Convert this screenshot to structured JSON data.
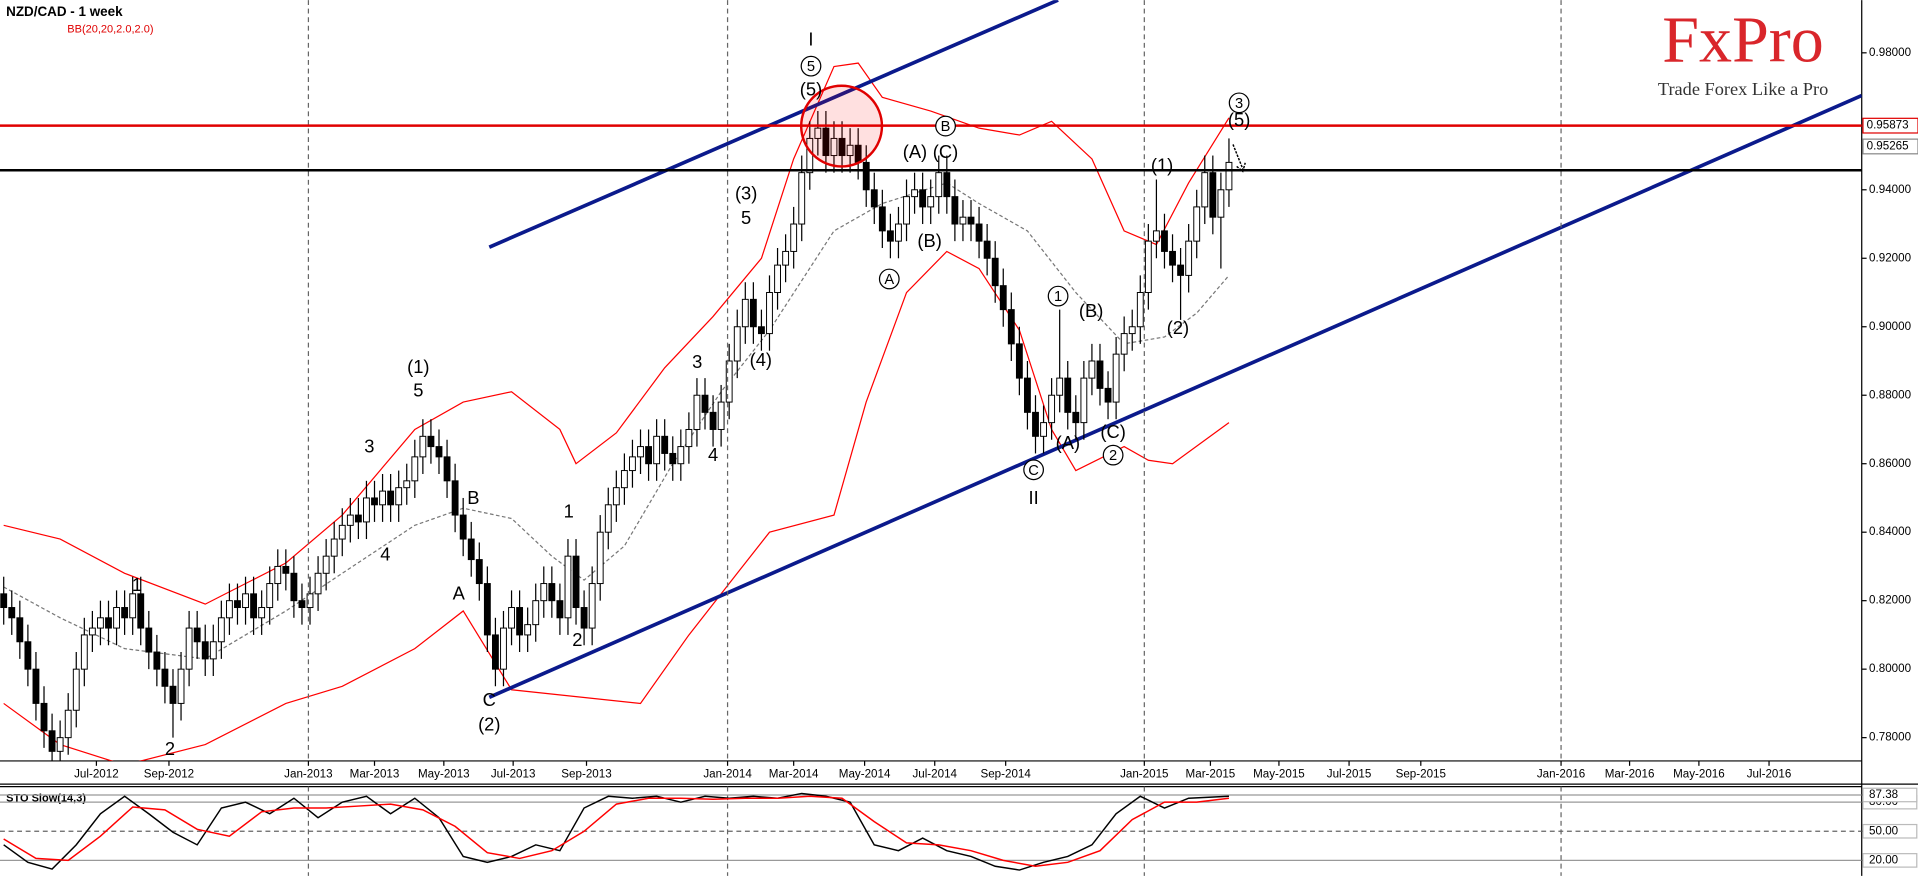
{
  "chart_data": {
    "type": "candlestick",
    "title": "NZD/CAD - 1 week",
    "indicator": "BB(20,20,2.0,2.0)",
    "logo": "FxPro",
    "tagline": "Trade Forex Like a Pro",
    "xlim": [
      -0.46,
      230.5
    ],
    "xticks": [
      {
        "value": 11.5,
        "label": "Jul-2012"
      },
      {
        "value": 20.5,
        "label": "Sep-2012"
      },
      {
        "value": 37.8,
        "label": "Jan-2013"
      },
      {
        "value": 46,
        "label": "Mar-2013"
      },
      {
        "value": 54.6,
        "label": "May-2013"
      },
      {
        "value": 63.2,
        "label": "Jul-2013"
      },
      {
        "value": 72.3,
        "label": "Sep-2013"
      },
      {
        "value": 89.8,
        "label": "Jan-2014"
      },
      {
        "value": 98,
        "label": "Mar-2014"
      },
      {
        "value": 106.8,
        "label": "May-2014"
      },
      {
        "value": 115.5,
        "label": "Jul-2014"
      },
      {
        "value": 124.3,
        "label": "Sep-2014"
      },
      {
        "value": 141.5,
        "label": "Jan-2015"
      },
      {
        "value": 149.7,
        "label": "Mar-2015"
      },
      {
        "value": 158.2,
        "label": "May-2015"
      },
      {
        "value": 166.9,
        "label": "Jul-2015"
      },
      {
        "value": 175.8,
        "label": "Sep-2015"
      },
      {
        "value": 193.2,
        "label": "Jan-2016"
      },
      {
        "value": 201.7,
        "label": "Mar-2016"
      },
      {
        "value": 210.3,
        "label": "May-2016"
      },
      {
        "value": 219,
        "label": "Jul-2016"
      }
    ],
    "ylim": [
      0.7732,
      0.9954
    ],
    "yticks": [
      {
        "value": 0.78,
        "label": "0.78000"
      },
      {
        "value": 0.8,
        "label": "0.80000"
      },
      {
        "value": 0.82,
        "label": "0.82000"
      },
      {
        "value": 0.84,
        "label": "0.84000"
      },
      {
        "value": 0.86,
        "label": "0.86000"
      },
      {
        "value": 0.88,
        "label": "0.88000"
      },
      {
        "value": 0.9,
        "label": "0.90000"
      },
      {
        "value": 0.92,
        "label": "0.92000"
      },
      {
        "value": 0.94,
        "label": "0.94000"
      },
      {
        "value": 0.98,
        "label": "0.98000"
      }
    ],
    "up_color": "#ffffff",
    "down_color": "#000000",
    "open": [
      0.822,
      0.818,
      0.815,
      0.808,
      0.8,
      0.79,
      0.782,
      0.776,
      0.78,
      0.788,
      0.8,
      0.81,
      0.812,
      0.815,
      0.812,
      0.818,
      0.815,
      0.822,
      0.812,
      0.805,
      0.8,
      0.795,
      0.79,
      0.8,
      0.812,
      0.808,
      0.803,
      0.808,
      0.815,
      0.82,
      0.818,
      0.822,
      0.815,
      0.818,
      0.825,
      0.83,
      0.828,
      0.82,
      0.818,
      0.822,
      0.828,
      0.833,
      0.838,
      0.842,
      0.845,
      0.843,
      0.85,
      0.848,
      0.852,
      0.848,
      0.853,
      0.855,
      0.862,
      0.868,
      0.865,
      0.862,
      0.855,
      0.845,
      0.838,
      0.832,
      0.825,
      0.81,
      0.8,
      0.812,
      0.818,
      0.81,
      0.813,
      0.82,
      0.825,
      0.82,
      0.815,
      0.833,
      0.818,
      0.812,
      0.825,
      0.84,
      0.848,
      0.853,
      0.858,
      0.862,
      0.865,
      0.86,
      0.868,
      0.863,
      0.86,
      0.865,
      0.87,
      0.88,
      0.875,
      0.87,
      0.878,
      0.89,
      0.9,
      0.908,
      0.9,
      0.898,
      0.91,
      0.918,
      0.922,
      0.93,
      0.945,
      0.955,
      0.958,
      0.95,
      0.955,
      0.95,
      0.953,
      0.948,
      0.94,
      0.935,
      0.928,
      0.925,
      0.93,
      0.938,
      0.94,
      0.935,
      0.938,
      0.945,
      0.938,
      0.93,
      0.932,
      0.93,
      0.925,
      0.92,
      0.912,
      0.905,
      0.895,
      0.885,
      0.875,
      0.868,
      0.872,
      0.88,
      0.885,
      0.875,
      0.872,
      0.885,
      0.89,
      0.882,
      0.878,
      0.892,
      0.898,
      0.9,
      0.91,
      0.925,
      0.928,
      0.922,
      0.918,
      0.915,
      0.925,
      0.935,
      0.945,
      0.932,
      0.94
    ],
    "high": [
      0.827,
      0.823,
      0.82,
      0.813,
      0.805,
      0.795,
      0.787,
      0.785,
      0.793,
      0.805,
      0.815,
      0.817,
      0.82,
      0.82,
      0.823,
      0.823,
      0.827,
      0.827,
      0.817,
      0.81,
      0.805,
      0.8,
      0.805,
      0.817,
      0.817,
      0.813,
      0.813,
      0.82,
      0.825,
      0.825,
      0.827,
      0.827,
      0.823,
      0.83,
      0.835,
      0.835,
      0.833,
      0.825,
      0.827,
      0.833,
      0.838,
      0.843,
      0.847,
      0.85,
      0.85,
      0.855,
      0.855,
      0.857,
      0.857,
      0.858,
      0.86,
      0.867,
      0.873,
      0.873,
      0.87,
      0.867,
      0.86,
      0.85,
      0.843,
      0.837,
      0.83,
      0.815,
      0.817,
      0.823,
      0.823,
      0.818,
      0.825,
      0.83,
      0.83,
      0.825,
      0.838,
      0.838,
      0.823,
      0.83,
      0.845,
      0.853,
      0.858,
      0.863,
      0.867,
      0.87,
      0.87,
      0.873,
      0.873,
      0.868,
      0.87,
      0.875,
      0.885,
      0.885,
      0.88,
      0.883,
      0.895,
      0.905,
      0.913,
      0.913,
      0.905,
      0.915,
      0.923,
      0.927,
      0.935,
      0.95,
      0.96,
      0.963,
      0.963,
      0.96,
      0.96,
      0.958,
      0.958,
      0.953,
      0.945,
      0.94,
      0.933,
      0.935,
      0.943,
      0.945,
      0.945,
      0.943,
      0.95,
      0.95,
      0.943,
      0.937,
      0.937,
      0.935,
      0.93,
      0.925,
      0.917,
      0.91,
      0.9,
      0.89,
      0.88,
      0.877,
      0.885,
      0.905,
      0.89,
      0.88,
      0.89,
      0.895,
      0.895,
      0.887,
      0.897,
      0.903,
      0.905,
      0.915,
      0.93,
      0.943,
      0.933,
      0.927,
      0.923,
      0.93,
      0.94,
      0.95,
      0.95,
      0.945,
      0.955
    ],
    "low": [
      0.813,
      0.81,
      0.803,
      0.795,
      0.785,
      0.777,
      0.771,
      0.771,
      0.775,
      0.783,
      0.795,
      0.805,
      0.807,
      0.807,
      0.807,
      0.81,
      0.81,
      0.807,
      0.8,
      0.795,
      0.79,
      0.78,
      0.785,
      0.795,
      0.803,
      0.798,
      0.798,
      0.803,
      0.81,
      0.813,
      0.813,
      0.81,
      0.81,
      0.813,
      0.82,
      0.823,
      0.815,
      0.813,
      0.813,
      0.817,
      0.823,
      0.828,
      0.833,
      0.837,
      0.838,
      0.838,
      0.843,
      0.843,
      0.843,
      0.843,
      0.848,
      0.85,
      0.857,
      0.86,
      0.857,
      0.85,
      0.84,
      0.833,
      0.827,
      0.82,
      0.805,
      0.795,
      0.795,
      0.807,
      0.805,
      0.805,
      0.808,
      0.815,
      0.815,
      0.81,
      0.81,
      0.813,
      0.807,
      0.807,
      0.82,
      0.835,
      0.843,
      0.848,
      0.853,
      0.857,
      0.855,
      0.855,
      0.858,
      0.855,
      0.855,
      0.86,
      0.865,
      0.87,
      0.865,
      0.865,
      0.873,
      0.885,
      0.895,
      0.895,
      0.893,
      0.893,
      0.905,
      0.913,
      0.917,
      0.925,
      0.94,
      0.95,
      0.945,
      0.945,
      0.945,
      0.945,
      0.943,
      0.935,
      0.93,
      0.923,
      0.92,
      0.92,
      0.925,
      0.933,
      0.93,
      0.93,
      0.933,
      0.933,
      0.925,
      0.925,
      0.925,
      0.92,
      0.915,
      0.907,
      0.9,
      0.89,
      0.88,
      0.87,
      0.863,
      0.863,
      0.867,
      0.875,
      0.87,
      0.867,
      0.867,
      0.88,
      0.877,
      0.873,
      0.873,
      0.887,
      0.893,
      0.895,
      0.905,
      0.92,
      0.917,
      0.913,
      0.902,
      0.91,
      0.92,
      0.93,
      0.927,
      0.917,
      0.935
    ],
    "close": [
      0.818,
      0.815,
      0.808,
      0.8,
      0.79,
      0.782,
      0.776,
      0.78,
      0.788,
      0.8,
      0.81,
      0.812,
      0.815,
      0.812,
      0.818,
      0.815,
      0.822,
      0.812,
      0.805,
      0.8,
      0.795,
      0.79,
      0.8,
      0.812,
      0.808,
      0.803,
      0.808,
      0.815,
      0.82,
      0.818,
      0.822,
      0.815,
      0.818,
      0.825,
      0.83,
      0.828,
      0.82,
      0.818,
      0.822,
      0.828,
      0.833,
      0.838,
      0.842,
      0.845,
      0.843,
      0.85,
      0.848,
      0.852,
      0.848,
      0.853,
      0.855,
      0.862,
      0.868,
      0.865,
      0.862,
      0.855,
      0.845,
      0.838,
      0.832,
      0.825,
      0.81,
      0.8,
      0.812,
      0.818,
      0.81,
      0.813,
      0.82,
      0.825,
      0.82,
      0.815,
      0.833,
      0.818,
      0.812,
      0.825,
      0.84,
      0.848,
      0.853,
      0.858,
      0.862,
      0.865,
      0.86,
      0.868,
      0.863,
      0.86,
      0.865,
      0.87,
      0.88,
      0.875,
      0.87,
      0.878,
      0.89,
      0.9,
      0.908,
      0.9,
      0.898,
      0.91,
      0.918,
      0.922,
      0.93,
      0.945,
      0.955,
      0.958,
      0.95,
      0.955,
      0.95,
      0.953,
      0.948,
      0.94,
      0.935,
      0.928,
      0.925,
      0.93,
      0.938,
      0.94,
      0.935,
      0.938,
      0.945,
      0.938,
      0.93,
      0.932,
      0.93,
      0.925,
      0.92,
      0.912,
      0.905,
      0.895,
      0.885,
      0.875,
      0.868,
      0.872,
      0.88,
      0.885,
      0.875,
      0.872,
      0.885,
      0.89,
      0.882,
      0.878,
      0.892,
      0.898,
      0.9,
      0.91,
      0.925,
      0.928,
      0.922,
      0.918,
      0.915,
      0.925,
      0.935,
      0.945,
      0.932,
      0.94,
      0.948
    ],
    "bands": [
      {
        "color": "#ff0000",
        "x": [
          0,
          7,
          15,
          25,
          35,
          42,
          51,
          57,
          63,
          69,
          71,
          76,
          82,
          88,
          94,
          98,
          103,
          106,
          109,
          115,
          121,
          126,
          130,
          135,
          139,
          143,
          147,
          152
        ],
        "values": [
          0.842,
          0.838,
          0.828,
          0.819,
          0.831,
          0.845,
          0.87,
          0.878,
          0.881,
          0.87,
          0.86,
          0.869,
          0.888,
          0.903,
          0.92,
          0.949,
          0.976,
          0.977,
          0.967,
          0.963,
          0.958,
          0.956,
          0.96,
          0.949,
          0.928,
          0.924,
          0.942,
          0.961
        ]
      },
      {
        "color": "#777777",
        "dash": true,
        "x": [
          0,
          7,
          15,
          25,
          35,
          42,
          51,
          57,
          63,
          68,
          72,
          77,
          83,
          89,
          95,
          103,
          109,
          117,
          121,
          127,
          133,
          139,
          144,
          148,
          152
        ],
        "values": [
          0.824,
          0.815,
          0.806,
          0.803,
          0.817,
          0.828,
          0.842,
          0.847,
          0.844,
          0.833,
          0.826,
          0.836,
          0.86,
          0.881,
          0.899,
          0.928,
          0.936,
          0.942,
          0.936,
          0.928,
          0.91,
          0.895,
          0.897,
          0.904,
          0.915
        ]
      },
      {
        "color": "#ff0000",
        "x": [
          0,
          7,
          15,
          25,
          35,
          42,
          51,
          57,
          63,
          71,
          79,
          85,
          91,
          95,
          103,
          107,
          112,
          117,
          121,
          126,
          130,
          133,
          139,
          142,
          145,
          152
        ],
        "values": [
          0.79,
          0.778,
          0.772,
          0.778,
          0.79,
          0.795,
          0.806,
          0.817,
          0.794,
          0.792,
          0.79,
          0.81,
          0.828,
          0.84,
          0.845,
          0.878,
          0.91,
          0.922,
          0.917,
          0.899,
          0.87,
          0.858,
          0.865,
          0.861,
          0.86,
          0.872
        ]
      }
    ],
    "levels": [
      {
        "value": 0.95873,
        "color": "#e00000"
      },
      {
        "value": 0.9457,
        "color": "#000000"
      }
    ],
    "price_labels": [
      0.95873,
      0.95265
    ],
    "annotations": [
      "I",
      "5",
      "(5)",
      "(3)",
      "5",
      "(4)",
      "3",
      "4",
      "1",
      "2",
      "B",
      "A",
      "C",
      "(2)",
      "(1)",
      "5",
      "3",
      "4",
      "1",
      "2",
      "(A)",
      "(C)",
      "B",
      "(B)",
      "A",
      "1",
      "(B)",
      "(A)",
      "(C)",
      "2",
      "C",
      "II",
      "(1)",
      "(2)",
      "3",
      "(5)"
    ],
    "oscillator": {
      "title": "STO Slow(14,3)",
      "ylim": [
        4,
        96
      ],
      "yticks": [
        {
          "value": 20,
          "label": "20.00"
        },
        {
          "value": 50,
          "label": "50.00"
        },
        {
          "value": 80,
          "label": "80.00"
        },
        {
          "value": 87.38,
          "label": "87.38"
        }
      ],
      "series": [
        {
          "color": "#000000",
          "x": [
            0,
            3,
            6,
            9,
            12,
            15,
            18,
            21,
            24,
            27,
            30,
            33,
            36,
            39,
            42,
            45,
            48,
            51,
            54,
            57,
            60,
            63,
            66,
            69,
            72,
            75,
            78,
            81,
            84,
            87,
            90,
            93,
            96,
            99,
            102,
            105,
            108,
            111,
            114,
            117,
            120,
            123,
            126,
            129,
            132,
            135,
            138,
            141,
            144,
            147,
            152
          ],
          "values": [
            36,
            18,
            11,
            36,
            68,
            86,
            68,
            49,
            36,
            74,
            80,
            68,
            84,
            64,
            80,
            86,
            68,
            84,
            64,
            24,
            18,
            24,
            36,
            30,
            74,
            86,
            84,
            86,
            80,
            86,
            84,
            86,
            84,
            89,
            86,
            80,
            36,
            30,
            43,
            30,
            24,
            14,
            10,
            18,
            24,
            36,
            68,
            86,
            74,
            84,
            86
          ]
        },
        {
          "color": "#ff0000",
          "x": [
            0,
            4,
            8,
            12,
            16,
            20,
            24,
            28,
            32,
            36,
            40,
            44,
            48,
            52,
            56,
            60,
            64,
            68,
            72,
            76,
            80,
            84,
            88,
            92,
            96,
            100,
            104,
            108,
            112,
            116,
            120,
            124,
            128,
            132,
            136,
            140,
            144,
            148,
            152
          ],
          "values": [
            42,
            22,
            20,
            45,
            75,
            72,
            52,
            45,
            70,
            74,
            74,
            76,
            78,
            72,
            55,
            28,
            22,
            30,
            50,
            78,
            84,
            84,
            83,
            84,
            84,
            86,
            84,
            60,
            38,
            36,
            30,
            20,
            14,
            18,
            30,
            62,
            80,
            80,
            84
          ]
        }
      ]
    }
  }
}
